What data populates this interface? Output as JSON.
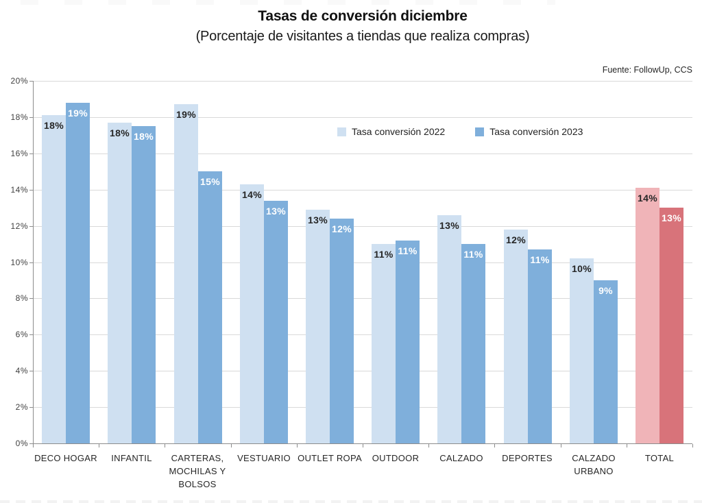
{
  "chart_data": {
    "type": "bar",
    "title": "Tasas de conversión diciembre",
    "subtitle": "(Porcentaje de visitantes a tiendas que realiza compras)",
    "source": "Fuente: FollowUp, CCS",
    "categories": [
      "DECO HOGAR",
      "INFANTIL",
      "CARTERAS, MOCHILAS Y BOLSOS",
      "VESTUARIO",
      "OUTLET ROPA",
      "OUTDOOR",
      "CALZADO",
      "DEPORTES",
      "CALZADO URBANO",
      "TOTAL"
    ],
    "category_lines": [
      [
        "DECO HOGAR"
      ],
      [
        "INFANTIL"
      ],
      [
        "CARTERAS,",
        "MOCHILAS Y",
        "BOLSOS"
      ],
      [
        "VESTUARIO"
      ],
      [
        "OUTLET ROPA"
      ],
      [
        "OUTDOOR"
      ],
      [
        "CALZADO"
      ],
      [
        "DEPORTES"
      ],
      [
        "CALZADO",
        "URBANO"
      ],
      [
        "TOTAL"
      ]
    ],
    "series": [
      {
        "name": "Tasa conversión 2022",
        "values": [
          18.1,
          17.7,
          18.7,
          14.3,
          12.9,
          11.0,
          12.6,
          11.8,
          10.2,
          14.1
        ],
        "labels": [
          "18%",
          "18%",
          "19%",
          "14%",
          "13%",
          "11%",
          "13%",
          "12%",
          "10%",
          "14%"
        ],
        "color": "#cfe0f1",
        "total_color": "#f0b4b8",
        "label_color": "#262626"
      },
      {
        "name": "Tasa conversión 2023",
        "values": [
          18.8,
          17.5,
          15.0,
          13.4,
          12.4,
          11.2,
          11.0,
          10.7,
          9.0,
          13.0
        ],
        "labels": [
          "19%",
          "18%",
          "15%",
          "13%",
          "12%",
          "11%",
          "11%",
          "11%",
          "9%",
          "13%"
        ],
        "color": "#7fafdb",
        "total_color": "#d8737a",
        "label_color": "#ffffff"
      }
    ],
    "ylim": [
      0,
      20
    ],
    "ytick_step": 2,
    "ytick_labels": [
      "0%",
      "2%",
      "4%",
      "6%",
      "8%",
      "10%",
      "12%",
      "14%",
      "16%",
      "18%",
      "20%"
    ],
    "grid": true,
    "legend_position": "inside-top-center",
    "colors": {
      "grid": "#d9d9d9",
      "axis": "#8c8c8c",
      "tick_text": "#404040"
    }
  }
}
